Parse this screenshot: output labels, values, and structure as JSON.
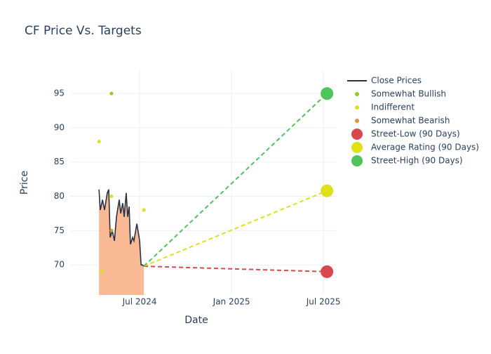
{
  "chart_data": {
    "type": "line",
    "title": "CF Price Vs. Targets",
    "x_label": "Date",
    "y_label": "Price",
    "xlim": [
      2024.122,
      2025.572
    ],
    "xticks": [
      {
        "value": 2024.5,
        "label": "Jul 2024"
      },
      {
        "value": 2025.0,
        "label": "Jan 2025"
      },
      {
        "value": 2025.5,
        "label": "Jul 2025"
      }
    ],
    "ylim": [
      65.6,
      98.4
    ],
    "yticks": [
      70,
      75,
      80,
      85,
      90,
      95
    ],
    "grid": true,
    "legend": "top-right",
    "series": [
      {
        "name": "Close Prices",
        "mode": "line",
        "color": "#2a3346",
        "fill": "#f9b995",
        "x": [
          2024.279,
          2024.286,
          2024.298,
          2024.309,
          2024.324,
          2024.332,
          2024.34,
          2024.351,
          2024.363,
          2024.374,
          2024.389,
          2024.397,
          2024.408,
          2024.416,
          2024.427,
          2024.435,
          2024.443,
          2024.45,
          2024.462,
          2024.469,
          2024.485,
          2024.5,
          2024.508,
          2024.515,
          2024.523
        ],
        "values": [
          81,
          78,
          79.5,
          78,
          80.5,
          81,
          74,
          75,
          73.5,
          77,
          79.5,
          77.5,
          79,
          77,
          80.5,
          77,
          78.5,
          73,
          74,
          73.5,
          76,
          73.5,
          70,
          70,
          69.8
        ]
      },
      {
        "name": "Somewhat Bullish",
        "mode": "markers",
        "color": "#8fce1f",
        "marker_size": 5,
        "x": [
          2024.347
        ],
        "values": [
          95
        ]
      },
      {
        "name": "Indifferent",
        "mode": "markers",
        "color": "#e0e01a",
        "marker_size": 5,
        "x": [
          2024.279,
          2024.347,
          2024.523,
          2024.294
        ],
        "values": [
          88,
          80,
          78,
          69
        ]
      },
      {
        "name": "Somewhat Bearish",
        "mode": "markers",
        "color": "#d49a2b",
        "marker_size": 5,
        "x": [
          2024.347
        ],
        "values": [
          75
        ]
      },
      {
        "name": "Street-Low (90 Days)",
        "mode": "target",
        "color": "#d9474f",
        "marker_size": 18,
        "x": [
          2025.519
        ],
        "values": [
          69
        ]
      },
      {
        "name": "Average Rating (90 Days)",
        "mode": "target",
        "color": "#e0e01a",
        "marker_size": 18,
        "x": [
          2025.519
        ],
        "values": [
          80.8
        ]
      },
      {
        "name": "Street-High (90 Days)",
        "mode": "target",
        "color": "#4ec45a",
        "marker_size": 18,
        "x": [
          2025.519
        ],
        "values": [
          95
        ]
      }
    ]
  }
}
